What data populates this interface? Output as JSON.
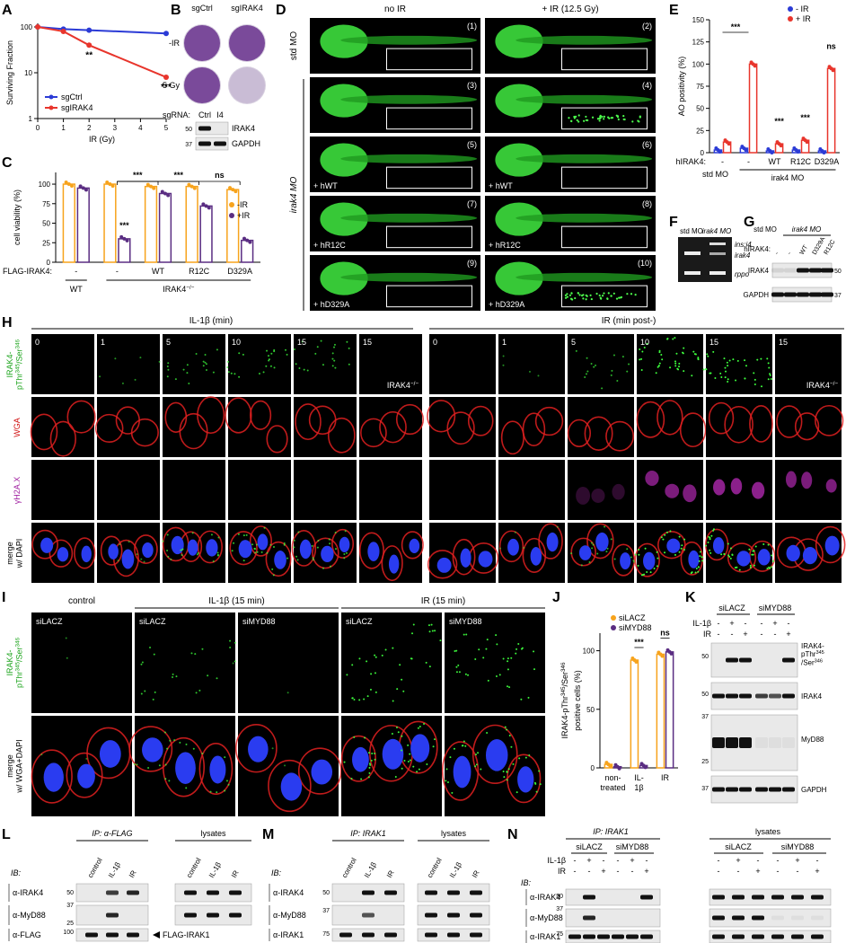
{
  "chart_data": [
    {
      "panel_label": "A",
      "type": "line",
      "ylabel": "Surviving Fraction",
      "xlabel": "IR (Gy)",
      "x": [
        0,
        1,
        2,
        5
      ],
      "xlim": [
        0,
        5
      ],
      "xticks": [
        0,
        1,
        2,
        3,
        4,
        5
      ],
      "ylim": [
        1,
        100
      ],
      "yticks": [
        1,
        10,
        100
      ],
      "log_y": true,
      "series": [
        {
          "name": "sgCtrl",
          "color": "#2b3bd6",
          "values": [
            100,
            90,
            85,
            72
          ]
        },
        {
          "name": "sgIRAK4",
          "color": "#e8352c",
          "values": [
            100,
            80,
            40,
            8
          ]
        }
      ],
      "annotations": [
        "**",
        "***"
      ]
    },
    {
      "panel_label": "C",
      "type": "bar",
      "ylabel": "cell viability (%)",
      "ylim": [
        0,
        115
      ],
      "yticks": [
        0,
        25,
        50,
        75,
        100
      ],
      "row_label": "FLAG-IRAK4:",
      "categories": [
        "-",
        "-",
        "WT",
        "R12C",
        "D329A"
      ],
      "groups": [
        {
          "parts": [
            "WT"
          ]
        },
        {
          "parts": [
            "IRAK4",
            "−/−"
          ]
        }
      ],
      "series": [
        {
          "name": "-IR",
          "color": "#f7a31c",
          "values": [
            100,
            100,
            97,
            97,
            93
          ]
        },
        {
          "name": "+IR",
          "color": "#5a2d82",
          "values": [
            95,
            30,
            88,
            72,
            28
          ]
        }
      ],
      "annotations": [
        "***",
        "***",
        "***",
        "ns"
      ]
    },
    {
      "panel_label": "E",
      "type": "bar",
      "ylabel": "AO positivity (%)",
      "ylim": [
        0,
        150
      ],
      "yticks": [
        0,
        25,
        50,
        75,
        100,
        125,
        150
      ],
      "row_label": "hIRAK4:",
      "categories": [
        "-",
        "-",
        "WT",
        "R12C",
        "D329A"
      ],
      "groups": [
        {
          "parts": [
            "std MO"
          ]
        },
        {
          "parts": [
            "irak4 MO"
          ]
        }
      ],
      "series": [
        {
          "name": "- IR",
          "color": "#2b3bd6",
          "values": [
            3,
            5,
            2,
            3,
            2
          ]
        },
        {
          "name": "+ IR",
          "color": "#e8352c",
          "values": [
            12,
            100,
            10,
            14,
            95
          ]
        }
      ],
      "annotations": [
        "***",
        "***",
        "***",
        "ns"
      ]
    },
    {
      "panel_label": "J",
      "type": "bar",
      "ylabel": {
        "parts": [
          "IRAK4-",
          "pThr",
          "345",
          "/Ser",
          "346"
        ]
      },
      "ylabel2": "positive cells (%)",
      "ylim": [
        0,
        115
      ],
      "yticks": [
        0,
        50,
        100
      ],
      "categories": [
        "non-treated",
        "IL-1β",
        "IR"
      ],
      "series": [
        {
          "name": "siLACZ",
          "color": "#f7a31c",
          "values": [
            3,
            92,
            97
          ]
        },
        {
          "name": "siMYD88",
          "color": "#5a2d82",
          "values": [
            1,
            2,
            99
          ]
        }
      ],
      "annotations": [
        "***",
        "ns"
      ]
    }
  ],
  "B": {
    "panel_label": "B",
    "columns": [
      "sgCtrl",
      "sgIRAK4"
    ],
    "rows": [
      "-IR",
      "5 Gy"
    ],
    "row_label": "sgRNA:",
    "lanes": [
      "Ctrl",
      "I4"
    ],
    "bands": [
      "IRAK4",
      "GAPDH"
    ],
    "markers": [
      50,
      37
    ]
  },
  "D": {
    "panel_label": "D",
    "columns": [
      "no IR",
      "+ IR (12.5 Gy)"
    ],
    "groups": [
      "std MO",
      "irak4 MO"
    ],
    "image_numbers": [
      "(1)",
      "(2)",
      "(3)",
      "(4)",
      "(5)",
      "(6)",
      "(7)",
      "(8)",
      "(9)",
      "(10)"
    ],
    "rescue_labels": [
      "+ hWT",
      "+ hWT",
      "+ hR12C",
      "+ hR12C",
      "+ hD329A",
      "+ hD329A"
    ]
  },
  "F": {
    "panel_label": "F",
    "lanes": [
      "std MO",
      "irak4 MO"
    ],
    "bands": [
      "ins:i4",
      "irak4",
      "rppo"
    ]
  },
  "G": {
    "panel_label": "G",
    "lane_groups": [
      "std MO",
      "irak4 MO"
    ],
    "row_label": "hIRAK4:",
    "lanes": [
      "-",
      "-",
      "WT",
      "D329A",
      "R12C"
    ],
    "bands": [
      "IRAK4",
      "GAPDH"
    ],
    "markers": [
      50,
      37
    ]
  },
  "H": {
    "panel_label": "H",
    "treatments": [
      "IL-1β (min)",
      "IR (min post-)"
    ],
    "time_points": [
      [
        0,
        1,
        5,
        10,
        15,
        15
      ],
      [
        0,
        1,
        5,
        10,
        15,
        15
      ]
    ],
    "knockout_label": {
      "parts": [
        "IRAK4",
        "−/−"
      ]
    },
    "row_labels": [
      {
        "parts": [
          "IRAK4-",
          "pThr",
          "345",
          "/Ser",
          "346"
        ]
      },
      {
        "parts": [
          "WGA"
        ]
      },
      {
        "parts": [
          "γH2A.X"
        ]
      },
      {
        "parts": [
          "merge",
          "w/ DAPI"
        ]
      }
    ]
  },
  "I": {
    "panel_label": "I",
    "conditions": [
      "control",
      "IL-1β (15 min)",
      "IR (15 min)"
    ],
    "sirnas": [
      "siLACZ",
      "siLACZ",
      "siMYD88",
      "siLACZ",
      "siMYD88"
    ],
    "row_labels": [
      {
        "parts": [
          "IRAK4-",
          "pThr",
          "345",
          "/Ser",
          "346"
        ]
      },
      {
        "parts": [
          "merge",
          "w/ WGA+DAPI"
        ]
      }
    ]
  },
  "K": {
    "panel_label": "K",
    "lane_groups": [
      "siLACZ",
      "siMYD88"
    ],
    "treatments": [
      {
        "name": "IL-1β",
        "signs": [
          "-",
          "+",
          "-",
          "-",
          "+",
          "-"
        ]
      },
      {
        "name": "IR",
        "signs": [
          "-",
          "-",
          "+",
          "-",
          "-",
          "+"
        ]
      }
    ],
    "bands": [
      {
        "parts": [
          "IRAK4-",
          "pThr",
          "345",
          "/Ser",
          "346"
        ]
      },
      {
        "parts": [
          "IRAK4"
        ]
      },
      {
        "parts": [
          "MyD88"
        ]
      },
      {
        "parts": [
          "GAPDH"
        ]
      }
    ],
    "markers": [
      50,
      50,
      37,
      25,
      37
    ]
  },
  "L": {
    "panel_label": "L",
    "ip": "IP: α-FLAG",
    "lysates": "lysates",
    "ib": "IB:",
    "lanes": [
      "control",
      "IL-1β",
      "IR",
      "control",
      "IL-1β",
      "IR"
    ],
    "bands": [
      "α-IRAK4",
      "α-MyD88",
      "α-FLAG"
    ],
    "markers": [
      50,
      37,
      25,
      100
    ],
    "arrow_label": "FLAG-IRAK1"
  },
  "M": {
    "panel_label": "M",
    "ip": "IP: IRAK1",
    "lysates": "lysates",
    "ib": "IB:",
    "lanes": [
      "control",
      "IL-1β",
      "IR",
      "control",
      "IL-1β",
      "IR"
    ],
    "bands": [
      "α-IRAK4",
      "α-MyD88",
      "α-IRAK1"
    ],
    "markers": [
      50,
      37,
      75
    ]
  },
  "N": {
    "panel_label": "N",
    "ip": "IP: IRAK1",
    "lysates": "lysates",
    "lane_groups": [
      "siLACZ",
      "siMYD88",
      "siLACZ",
      "siMYD88"
    ],
    "treatments": [
      {
        "name": "IL-1β",
        "signs": [
          "-",
          "+",
          "-",
          "-",
          "+",
          "-",
          "-",
          "+",
          "-",
          "-",
          "+",
          "-"
        ]
      },
      {
        "name": "IR",
        "signs": [
          "-",
          "-",
          "+",
          "-",
          "-",
          "+",
          "-",
          "-",
          "+",
          "-",
          "-",
          "+"
        ]
      }
    ],
    "ib": "IB:",
    "bands": [
      "α-IRAK4",
      "α-MyD88",
      "α-IRAK1"
    ],
    "markers": [
      50,
      37,
      75
    ]
  }
}
